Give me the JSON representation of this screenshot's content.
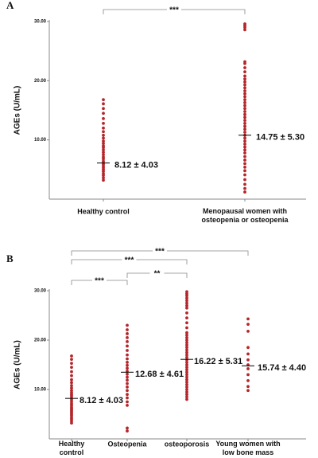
{
  "chart_data": [
    {
      "type": "strip",
      "panel_label": "A",
      "y_label": "AGEs (U/mL)",
      "color": "#b5262a",
      "categories": [
        "Healthy control",
        "Menopausal women with\nosteopenia or osteopenia"
      ],
      "values": [
        [
          3.2,
          3.6,
          4.0,
          4.3,
          4.7,
          5.0,
          5.3,
          5.6,
          5.9,
          6.1,
          6.4,
          6.8,
          7.1,
          7.5,
          7.9,
          8.3,
          8.7,
          9.0,
          9.4,
          9.8,
          10.3,
          10.8,
          11.4,
          12.0,
          12.8,
          13.6,
          14.5,
          15.3,
          16.1,
          16.8
        ],
        [
          1.2,
          1.8,
          2.5,
          3.3,
          4.1,
          4.8,
          5.4,
          6.0,
          6.6,
          7.2,
          7.8,
          8.3,
          8.8,
          9.3,
          9.8,
          10.3,
          10.8,
          11.3,
          11.8,
          12.3,
          12.8,
          13.3,
          13.8,
          14.3,
          14.8,
          15.3,
          15.8,
          16.3,
          16.8,
          17.3,
          17.8,
          18.3,
          18.8,
          19.3,
          19.8,
          20.3,
          20.8,
          21.5,
          22.2,
          22.9,
          23.2,
          28.6,
          29.0,
          29.3,
          29.6
        ]
      ],
      "centers": [
        6.1,
        10.8
      ],
      "annotations": [
        "8.12 ± 4.03",
        "14.75 ± 5.30"
      ],
      "brackets": [
        {
          "from": 0,
          "to": 1,
          "label": "***"
        }
      ],
      "ylim": [
        0,
        30
      ],
      "yticks": [
        {
          "value": 10,
          "label": "10.00"
        },
        {
          "value": 20,
          "label": "20.00"
        },
        {
          "value": 30,
          "label": "30.00"
        }
      ]
    },
    {
      "type": "strip",
      "panel_label": "B",
      "y_label": "AGEs (U/mL)",
      "color": "#b5262a",
      "categories": [
        "Healthy\ncontrol",
        "Osteopenia",
        "osteoporosis",
        "Young women with\nlow bone mass"
      ],
      "values": [
        [
          3.2,
          3.6,
          4.0,
          4.3,
          4.7,
          5.0,
          5.3,
          5.6,
          5.9,
          6.1,
          6.4,
          6.8,
          7.1,
          7.5,
          7.9,
          8.3,
          8.7,
          9.0,
          9.4,
          9.8,
          10.3,
          10.8,
          11.4,
          12.0,
          12.8,
          13.6,
          14.5,
          15.3,
          16.1,
          16.8
        ],
        [
          1.6,
          2.2,
          6.8,
          7.5,
          8.3,
          9.0,
          9.8,
          10.5,
          11.2,
          11.9,
          12.5,
          13.1,
          13.7,
          14.3,
          14.9,
          15.5,
          16.2,
          17.0,
          17.9,
          18.8,
          19.7,
          20.5,
          21.3,
          22.1,
          23.0
        ],
        [
          8.0,
          8.5,
          9.0,
          9.5,
          10.0,
          10.5,
          11.0,
          11.5,
          12.0,
          12.5,
          13.0,
          13.5,
          14.0,
          14.5,
          15.0,
          15.5,
          16.0,
          16.5,
          17.0,
          17.5,
          18.0,
          18.5,
          19.0,
          19.5,
          20.0,
          20.5,
          21.0,
          21.5,
          22.5,
          23.5,
          24.5,
          25.5,
          26.5,
          27.0,
          27.5,
          28.0,
          28.5,
          29.0,
          29.4,
          29.8
        ],
        [
          9.8,
          10.6,
          11.8,
          13.0,
          14.2,
          15.0,
          16.0,
          17.2,
          18.5,
          21.8,
          23.2,
          24.3
        ]
      ],
      "centers": [
        8.2,
        13.5,
        16.1,
        14.8
      ],
      "annotations": [
        "8.12 ± 4.03",
        "12.68 ± 4.61",
        "16.22 ± 5.31",
        "15.74 ± 4.40"
      ],
      "brackets": [
        {
          "from": 0,
          "to": 3,
          "label": "***"
        },
        {
          "from": 0,
          "to": 2,
          "label": "***"
        },
        {
          "from": 1,
          "to": 2,
          "label": "**"
        },
        {
          "from": 0,
          "to": 1,
          "label": "***"
        }
      ],
      "ylim": [
        0,
        30
      ],
      "yticks": [
        {
          "value": 10,
          "label": "10.00"
        },
        {
          "value": 20,
          "label": "20.00"
        },
        {
          "value": 30,
          "label": "30.00"
        }
      ]
    }
  ]
}
